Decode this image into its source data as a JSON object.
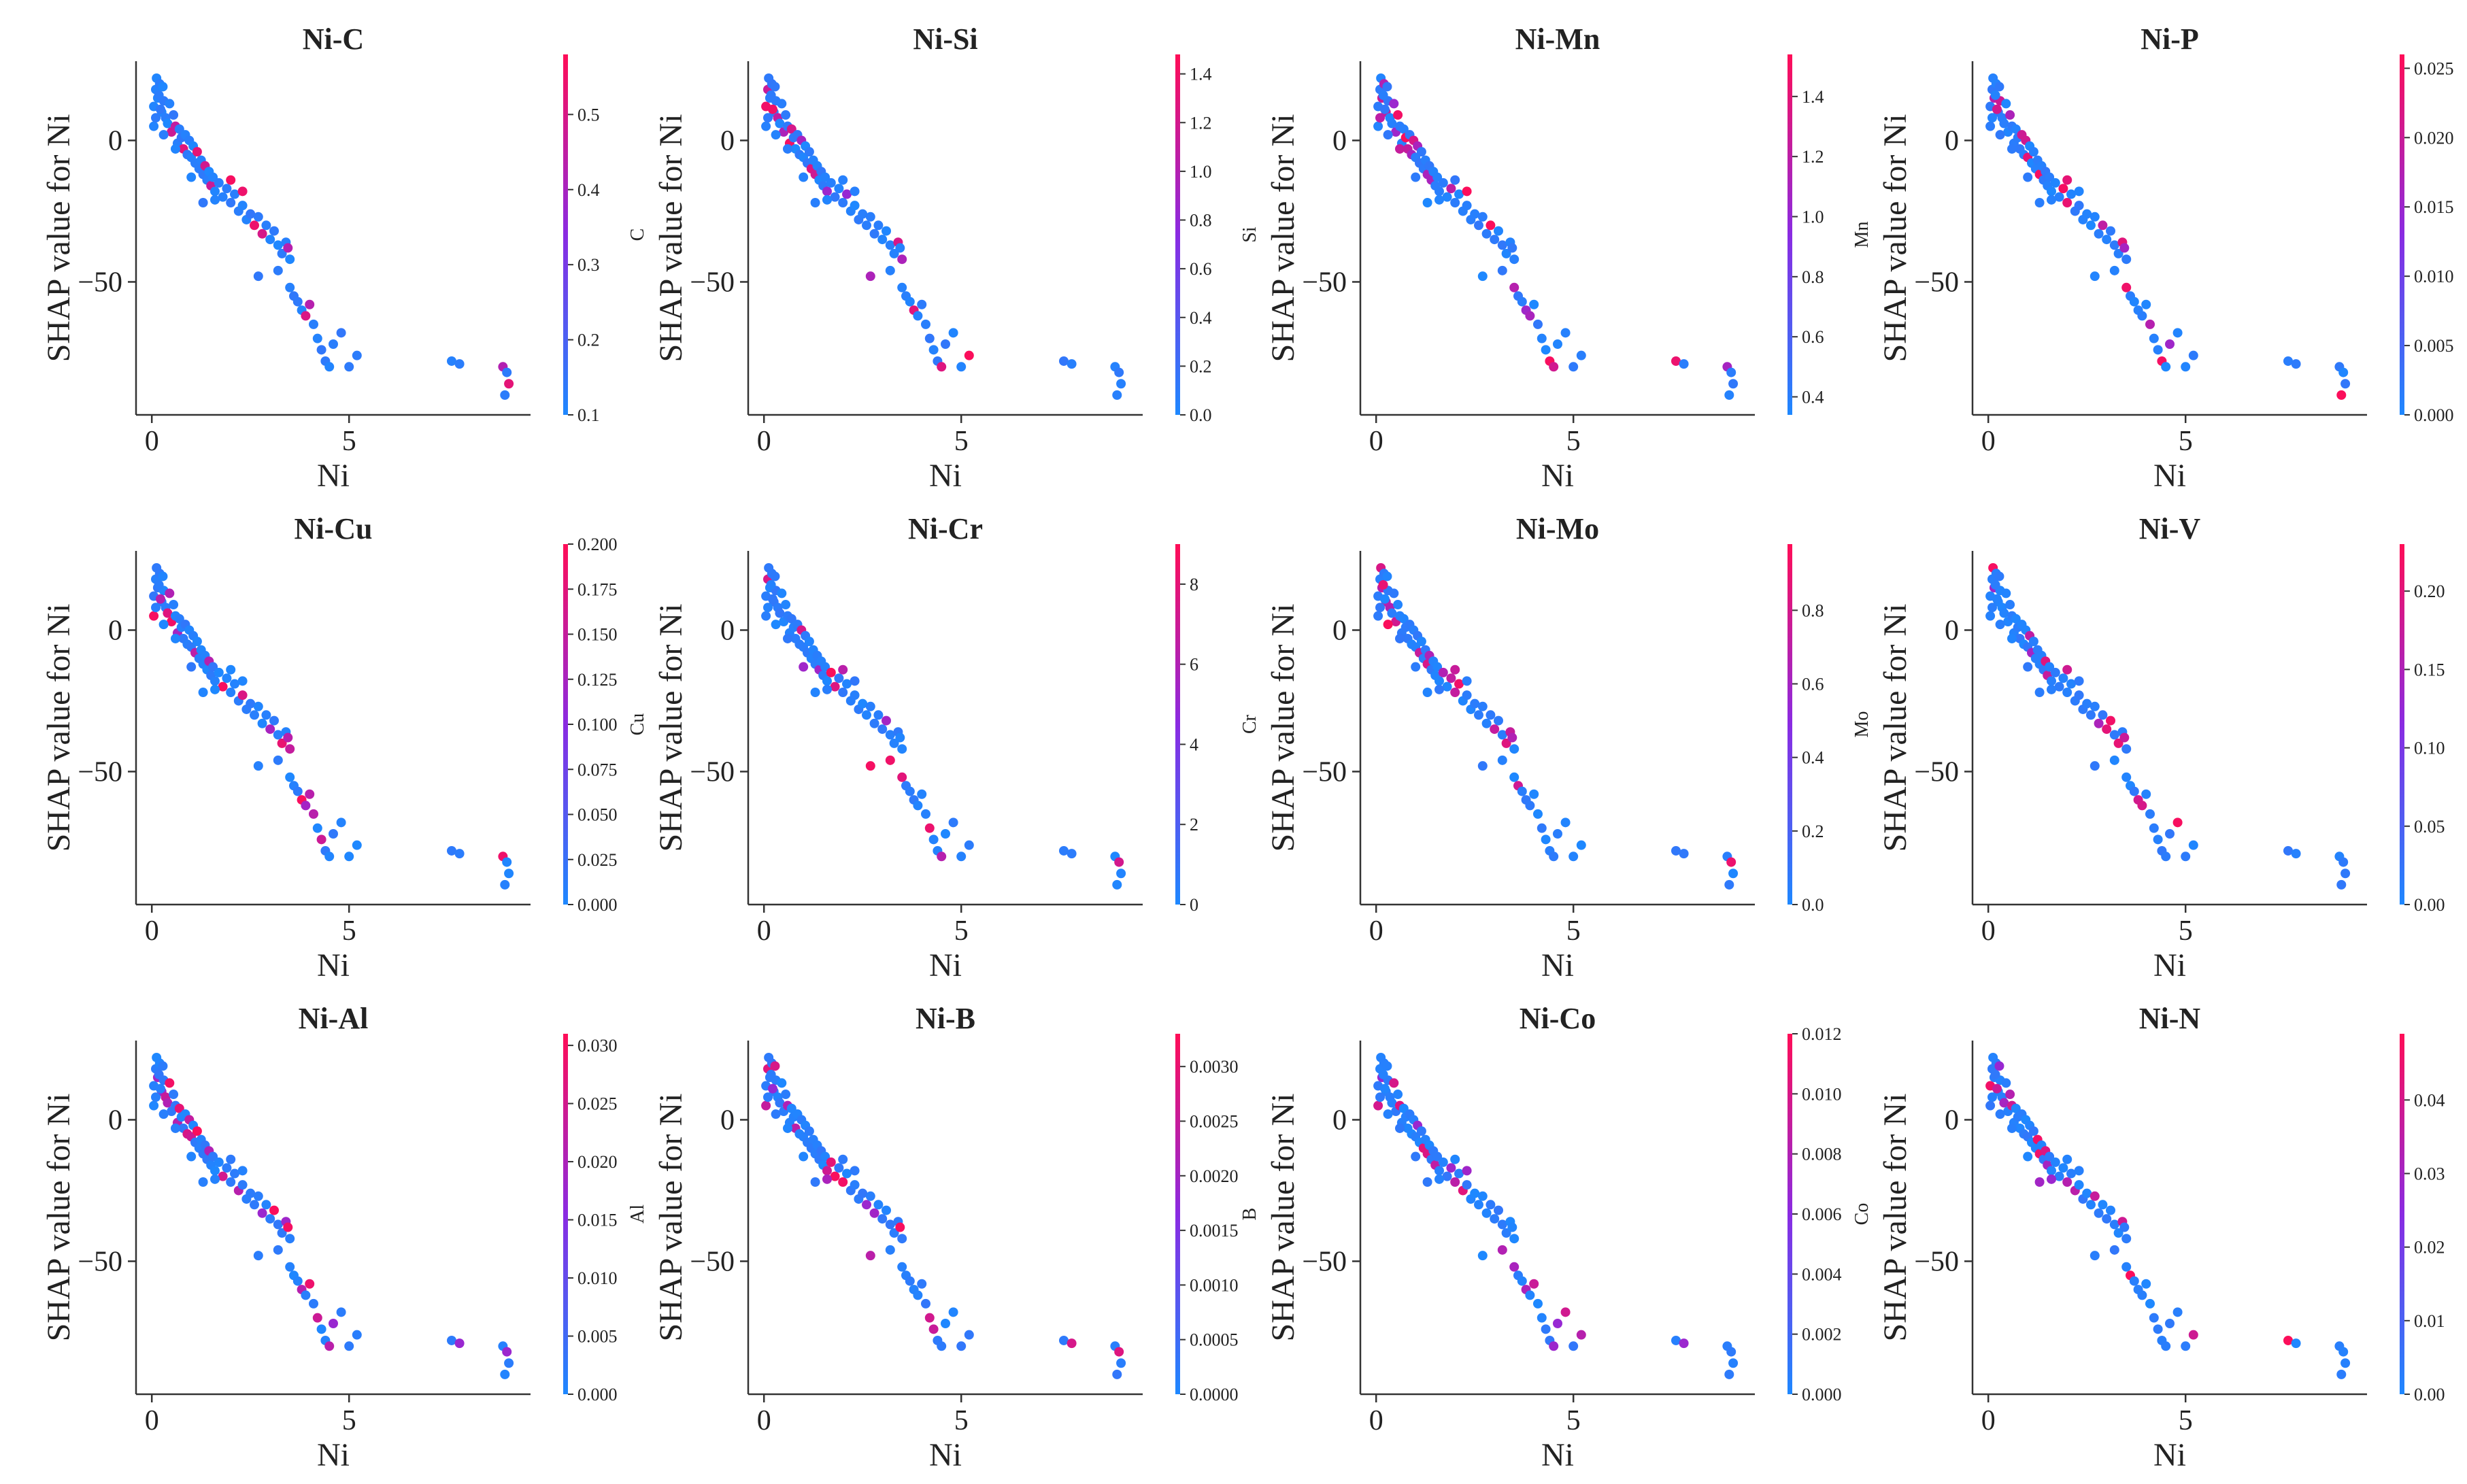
{
  "figure": {
    "ylabel": "SHAP value for Ni",
    "xlabel": "Ni",
    "x_ticks": [
      "0",
      "5"
    ],
    "y_ticks": [
      "0",
      "-50"
    ],
    "colors": {
      "low": "#1e88ff",
      "high": "#ff0d57",
      "mid": "#8a2be2",
      "axis": "#333333"
    }
  },
  "chart_data": [
    {
      "type": "scatter",
      "title": "Ni-C",
      "x": "Ni",
      "y": "SHAP value for Ni",
      "colorbar": {
        "label": "C",
        "ticks": [
          "0.1",
          "0.2",
          "0.3",
          "0.4",
          "0.5"
        ],
        "range": [
          0.1,
          0.58
        ]
      },
      "xlim": [
        -0.4,
        9.6
      ],
      "ylim": [
        -97,
        28
      ]
    },
    {
      "type": "scatter",
      "title": "Ni-Si",
      "x": "Ni",
      "y": "SHAP value for Ni",
      "colorbar": {
        "label": "Si",
        "ticks": [
          "0.0",
          "0.2",
          "0.4",
          "0.6",
          "0.8",
          "1.0",
          "1.2",
          "1.4"
        ],
        "range": [
          0,
          1.48
        ]
      },
      "xlim": [
        -0.4,
        9.6
      ],
      "ylim": [
        -97,
        28
      ]
    },
    {
      "type": "scatter",
      "title": "Ni-Mn",
      "x": "Ni",
      "y": "SHAP value for Ni",
      "colorbar": {
        "label": "Mn",
        "ticks": [
          "0.4",
          "0.6",
          "0.8",
          "1.0",
          "1.2",
          "1.4"
        ],
        "range": [
          0.34,
          1.54
        ]
      },
      "xlim": [
        -0.4,
        9.6
      ],
      "ylim": [
        -97,
        28
      ]
    },
    {
      "type": "scatter",
      "title": "Ni-P",
      "x": "Ni",
      "y": "SHAP value for Ni",
      "colorbar": {
        "label": "P",
        "ticks": [
          "0.000",
          "0.005",
          "0.010",
          "0.015",
          "0.020",
          "0.025"
        ],
        "range": [
          0,
          0.026
        ]
      },
      "xlim": [
        -0.4,
        9.6
      ],
      "ylim": [
        -97,
        28
      ]
    },
    {
      "type": "scatter",
      "title": "Ni-Cu",
      "x": "Ni",
      "y": "SHAP value for Ni",
      "colorbar": {
        "label": "Cu",
        "ticks": [
          "0.000",
          "0.025",
          "0.050",
          "0.075",
          "0.100",
          "0.125",
          "0.150",
          "0.175",
          "0.200"
        ],
        "range": [
          0,
          0.2
        ]
      },
      "xlim": [
        -0.4,
        9.6
      ],
      "ylim": [
        -97,
        28
      ]
    },
    {
      "type": "scatter",
      "title": "Ni-Cr",
      "x": "Ni",
      "y": "SHAP value for Ni",
      "colorbar": {
        "label": "Cr",
        "ticks": [
          "0",
          "2",
          "4",
          "6",
          "8"
        ],
        "range": [
          0,
          9
        ]
      },
      "xlim": [
        -0.4,
        9.6
      ],
      "ylim": [
        -97,
        28
      ]
    },
    {
      "type": "scatter",
      "title": "Ni-Mo",
      "x": "Ni",
      "y": "SHAP value for Ni",
      "colorbar": {
        "label": "Mo",
        "ticks": [
          "0.0",
          "0.2",
          "0.4",
          "0.6",
          "0.8"
        ],
        "range": [
          0,
          0.98
        ]
      },
      "xlim": [
        -0.4,
        9.6
      ],
      "ylim": [
        -97,
        28
      ]
    },
    {
      "type": "scatter",
      "title": "Ni-V",
      "x": "Ni",
      "y": "SHAP value for Ni",
      "colorbar": {
        "label": "V",
        "ticks": [
          "0.00",
          "0.05",
          "0.10",
          "0.15",
          "0.20"
        ],
        "range": [
          0,
          0.23
        ]
      },
      "xlim": [
        -0.4,
        9.6
      ],
      "ylim": [
        -97,
        28
      ]
    },
    {
      "type": "scatter",
      "title": "Ni-Al",
      "x": "Ni",
      "y": "SHAP value for Ni",
      "colorbar": {
        "label": "Al",
        "ticks": [
          "0.000",
          "0.005",
          "0.010",
          "0.015",
          "0.020",
          "0.025",
          "0.030"
        ],
        "range": [
          0,
          0.031
        ]
      },
      "xlim": [
        -0.4,
        9.6
      ],
      "ylim": [
        -97,
        28
      ]
    },
    {
      "type": "scatter",
      "title": "Ni-B",
      "x": "Ni",
      "y": "SHAP value for Ni",
      "colorbar": {
        "label": "B",
        "ticks": [
          "0.0000",
          "0.0005",
          "0.0010",
          "0.0015",
          "0.0020",
          "0.0025",
          "0.0030"
        ],
        "range": [
          0,
          0.0033
        ]
      },
      "xlim": [
        -0.4,
        9.6
      ],
      "ylim": [
        -97,
        28
      ]
    },
    {
      "type": "scatter",
      "title": "Ni-Co",
      "x": "Ni",
      "y": "SHAP value for Ni",
      "colorbar": {
        "label": "Co",
        "ticks": [
          "0.000",
          "0.002",
          "0.004",
          "0.006",
          "0.008",
          "0.010",
          "0.012"
        ],
        "range": [
          0,
          0.012
        ]
      },
      "xlim": [
        -0.4,
        9.6
      ],
      "ylim": [
        -97,
        28
      ]
    },
    {
      "type": "scatter",
      "title": "Ni-N",
      "x": "Ni",
      "y": "SHAP value for Ni",
      "colorbar": {
        "label": "N",
        "ticks": [
          "0.00",
          "0.01",
          "0.02",
          "0.03",
          "0.04"
        ],
        "range": [
          0,
          0.049
        ]
      },
      "xlim": [
        -0.4,
        9.6
      ],
      "ylim": [
        -97,
        28
      ]
    }
  ],
  "points": [
    [
      0.05,
      12
    ],
    [
      0.1,
      18
    ],
    [
      0.12,
      22
    ],
    [
      0.15,
      15
    ],
    [
      0.2,
      20
    ],
    [
      0.25,
      10
    ],
    [
      0.3,
      14
    ],
    [
      0.35,
      8
    ],
    [
      0.05,
      5
    ],
    [
      0.1,
      8
    ],
    [
      0.18,
      16
    ],
    [
      0.22,
      11
    ],
    [
      0.28,
      19
    ],
    [
      0.4,
      6
    ],
    [
      0.45,
      13
    ],
    [
      0.5,
      3
    ],
    [
      0.55,
      9
    ],
    [
      0.6,
      5
    ],
    [
      0.65,
      -1
    ],
    [
      0.7,
      4
    ],
    [
      0.75,
      1
    ],
    [
      0.8,
      -3
    ],
    [
      0.85,
      2
    ],
    [
      0.9,
      -5
    ],
    [
      0.95,
      0
    ],
    [
      1.0,
      -6
    ],
    [
      1.05,
      -2
    ],
    [
      1.1,
      -8
    ],
    [
      1.15,
      -4
    ],
    [
      1.2,
      -10
    ],
    [
      1.25,
      -7
    ],
    [
      1.3,
      -12
    ],
    [
      1.35,
      -9
    ],
    [
      1.4,
      -14
    ],
    [
      1.45,
      -11
    ],
    [
      1.5,
      -16
    ],
    [
      1.55,
      -13
    ],
    [
      1.6,
      -18
    ],
    [
      1.7,
      -15
    ],
    [
      1.8,
      -20
    ],
    [
      1.9,
      -17
    ],
    [
      2.0,
      -22
    ],
    [
      2.1,
      -19
    ],
    [
      2.2,
      -25
    ],
    [
      2.3,
      -23
    ],
    [
      2.4,
      -28
    ],
    [
      2.5,
      -26
    ],
    [
      2.6,
      -30
    ],
    [
      2.7,
      -27
    ],
    [
      2.8,
      -33
    ],
    [
      2.9,
      -30
    ],
    [
      3.0,
      -35
    ],
    [
      3.1,
      -32
    ],
    [
      3.2,
      -37
    ],
    [
      3.3,
      -40
    ],
    [
      3.4,
      -36
    ],
    [
      3.5,
      -42
    ],
    [
      3.45,
      -38
    ],
    [
      2.7,
      -48
    ],
    [
      3.5,
      -52
    ],
    [
      3.6,
      -55
    ],
    [
      3.7,
      -57
    ],
    [
      3.8,
      -60
    ],
    [
      3.9,
      -62
    ],
    [
      4.0,
      -58
    ],
    [
      4.1,
      -65
    ],
    [
      4.2,
      -70
    ],
    [
      4.3,
      -74
    ],
    [
      4.4,
      -78
    ],
    [
      4.5,
      -80
    ],
    [
      4.6,
      -72
    ],
    [
      4.8,
      -68
    ],
    [
      5.0,
      -80
    ],
    [
      5.2,
      -76
    ],
    [
      7.6,
      -78
    ],
    [
      7.8,
      -79
    ],
    [
      8.9,
      -80
    ],
    [
      9.0,
      -82
    ],
    [
      9.05,
      -86
    ],
    [
      8.95,
      -90
    ],
    [
      1.3,
      -22
    ],
    [
      1.6,
      -21
    ],
    [
      0.3,
      2
    ],
    [
      0.6,
      -3
    ],
    [
      1.0,
      -13
    ],
    [
      2.0,
      -14
    ],
    [
      2.3,
      -18
    ],
    [
      3.2,
      -46
    ]
  ]
}
